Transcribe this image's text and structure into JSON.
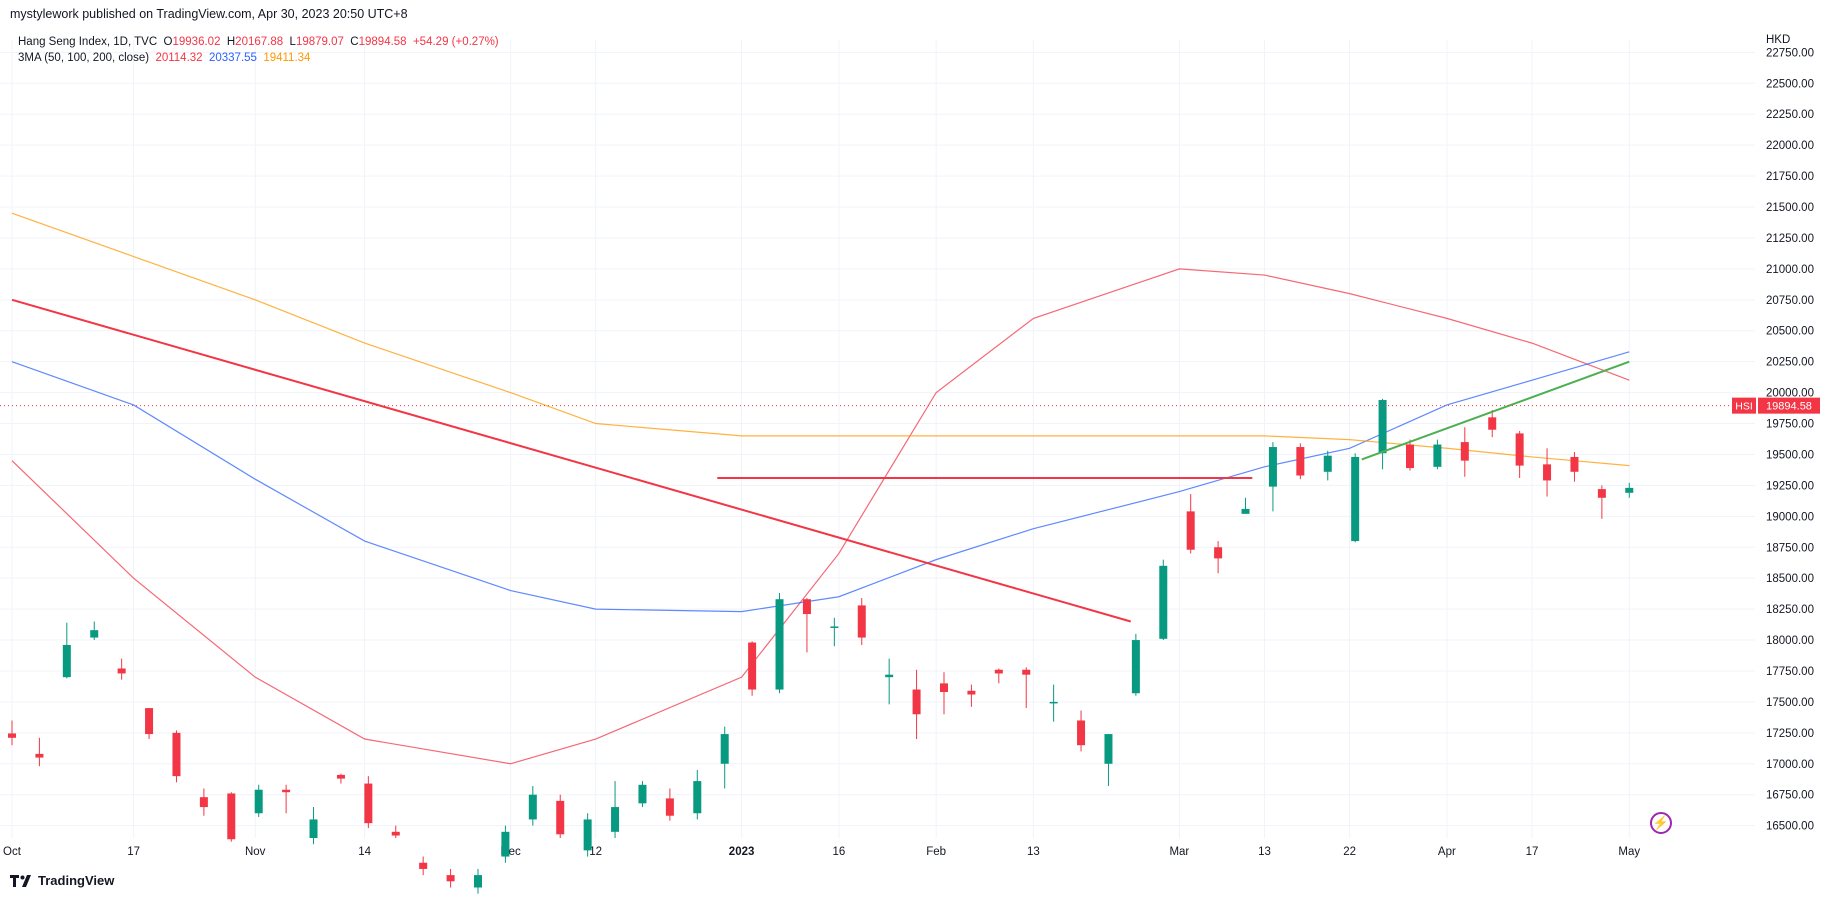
{
  "header": {
    "publisher_line": "mystylework published on TradingView.com, Apr 30, 2023 20:50 UTC+8"
  },
  "legend": {
    "symbol": "Hang Seng Index, 1D, TVC",
    "o_label": "O",
    "o_value": "19936.02",
    "h_label": "H",
    "h_value": "20167.88",
    "l_label": "L",
    "l_value": "19879.07",
    "c_label": "C",
    "c_value": "19894.58",
    "change": "+54.29 (+0.27%)",
    "ma_label": "3MA (50, 100, 200, close)",
    "ma50_value": "20114.32",
    "ma100_value": "20337.55",
    "ma200_value": "19411.34"
  },
  "currency": "HKD",
  "price_tag": {
    "symbol": "HSI",
    "value": "19894.58"
  },
  "footer": {
    "brand": "TradingView"
  },
  "colors": {
    "up": "#089981",
    "down": "#f23645",
    "ma50": "#f23645",
    "ma100": "#2962ff",
    "ma200": "#ff9800",
    "trend_green": "#4caf50",
    "grid": "#f0f3fa"
  },
  "icons": {
    "brand_logo": "tradingview-logo",
    "lightning": "lightning-icon"
  },
  "chart_data": {
    "type": "candlestick",
    "y_axis": {
      "range": [
        16400,
        22850
      ],
      "ticks": [
        16500,
        16750,
        17000,
        17250,
        17500,
        17750,
        18000,
        18250,
        18500,
        18750,
        19000,
        19250,
        19500,
        19750,
        20000,
        20250,
        20500,
        20750,
        21000,
        21250,
        21500,
        21750,
        22000,
        22250,
        22500,
        22750
      ],
      "tick_labels": [
        "16500.00",
        "16750.00",
        "17000.00",
        "17250.00",
        "17500.00",
        "17750.00",
        "18000.00",
        "18250.00",
        "18500.00",
        "18750.00",
        "19000.00",
        "19250.00",
        "19500.00",
        "19750.00",
        "20000.00",
        "20250.00",
        "20500.00",
        "20750.00",
        "21000.00",
        "21250.00",
        "21500.00",
        "21750.00",
        "22000.00",
        "22250.00",
        "22500.00",
        "22750.00"
      ]
    },
    "x_axis": {
      "tick_labels": [
        "Oct",
        "17",
        "Nov",
        "14",
        "Dec",
        "12",
        "2023",
        "16",
        "Feb",
        "13",
        "Mar",
        "13",
        "22",
        "Apr",
        "17",
        "May"
      ],
      "tick_bar_index": [
        0,
        10,
        20,
        29,
        41,
        48,
        60,
        68,
        76,
        84,
        96,
        103,
        110,
        118,
        125,
        133
      ]
    },
    "candles": [
      [
        17245,
        17210,
        17350,
        17150
      ],
      [
        17080,
        17050,
        17210,
        16980
      ],
      [
        17700,
        17960,
        18140,
        17690
      ],
      [
        18020,
        18080,
        18150,
        18000
      ],
      [
        17770,
        17730,
        17850,
        17680
      ],
      [
        17450,
        17240,
        17450,
        17200
      ],
      [
        17250,
        16900,
        17270,
        16850
      ],
      [
        16730,
        16650,
        16800,
        16580
      ],
      [
        16760,
        16390,
        16770,
        16370
      ],
      [
        16600,
        16790,
        16830,
        16570
      ],
      [
        16790,
        16770,
        16830,
        16600
      ],
      [
        16400,
        16550,
        16650,
        16350
      ],
      [
        16910,
        16880,
        16920,
        16840
      ],
      [
        16840,
        16520,
        16900,
        16480
      ],
      [
        16450,
        16420,
        16500,
        16400
      ],
      [
        16200,
        16150,
        16250,
        16100
      ],
      [
        16100,
        16050,
        16150,
        16000
      ],
      [
        16000,
        16100,
        16150,
        15950
      ],
      [
        16250,
        16450,
        16500,
        16200
      ],
      [
        16550,
        16750,
        16820,
        16500
      ],
      [
        16700,
        16430,
        16750,
        16400
      ],
      [
        16300,
        16550,
        16600,
        16250
      ],
      [
        16450,
        16650,
        16860,
        16400
      ],
      [
        16680,
        16830,
        16860,
        16650
      ],
      [
        16720,
        16580,
        16800,
        16540
      ],
      [
        16600,
        16860,
        16950,
        16550
      ],
      [
        17000,
        17240,
        17300,
        16800
      ],
      [
        17980,
        17600,
        17990,
        17550
      ],
      [
        17600,
        18330,
        18380,
        17570
      ],
      [
        18330,
        18210,
        18340,
        17900
      ],
      [
        18100,
        18110,
        18180,
        17950
      ],
      [
        18280,
        18020,
        18340,
        17960
      ],
      [
        17700,
        17720,
        17850,
        17480
      ],
      [
        17600,
        17400,
        17760,
        17200
      ],
      [
        17650,
        17580,
        17740,
        17400
      ],
      [
        17590,
        17560,
        17640,
        17460
      ],
      [
        17760,
        17730,
        17770,
        17650
      ],
      [
        17760,
        17720,
        17780,
        17450
      ],
      [
        17500,
        17500,
        17640,
        17340
      ],
      [
        17350,
        17150,
        17430,
        17100
      ],
      [
        17000,
        17240,
        17240,
        16820
      ],
      [
        17570,
        18000,
        18050,
        17550
      ],
      [
        18010,
        18600,
        18650,
        18000
      ],
      [
        19040,
        18730,
        19180,
        18700
      ],
      [
        18750,
        18660,
        18800,
        18540
      ],
      [
        19020,
        19060,
        19150,
        19040
      ],
      [
        19240,
        19560,
        19600,
        19040
      ],
      [
        19560,
        19330,
        19590,
        19300
      ],
      [
        19360,
        19490,
        19530,
        19290
      ],
      [
        18800,
        19480,
        19510,
        18790
      ],
      [
        19510,
        19940,
        19950,
        19380
      ],
      [
        19580,
        19390,
        19620,
        19370
      ],
      [
        19400,
        19580,
        19620,
        19380
      ],
      [
        19600,
        19450,
        19720,
        19320
      ],
      [
        19800,
        19700,
        19860,
        19640
      ],
      [
        19670,
        19410,
        19690,
        19310
      ],
      [
        19420,
        19290,
        19550,
        19160
      ],
      [
        19480,
        19360,
        19520,
        19280
      ],
      [
        19220,
        19150,
        19250,
        18980
      ],
      [
        19190,
        19230,
        19270,
        19150
      ]
    ],
    "moving_averages": [
      {
        "period": 50,
        "color": "#f23645",
        "points": [
          [
            0,
            19450
          ],
          [
            10,
            18500
          ],
          [
            20,
            17700
          ],
          [
            29,
            17200
          ],
          [
            41,
            17000
          ],
          [
            48,
            17200
          ],
          [
            60,
            17700
          ],
          [
            68,
            18700
          ],
          [
            76,
            20000
          ],
          [
            84,
            20600
          ],
          [
            96,
            21000
          ],
          [
            103,
            20950
          ],
          [
            110,
            20800
          ],
          [
            118,
            20600
          ],
          [
            125,
            20400
          ],
          [
            133,
            20100
          ]
        ]
      },
      {
        "period": 100,
        "color": "#2962ff",
        "points": [
          [
            0,
            20250
          ],
          [
            10,
            19900
          ],
          [
            20,
            19300
          ],
          [
            29,
            18800
          ],
          [
            41,
            18400
          ],
          [
            48,
            18250
          ],
          [
            60,
            18230
          ],
          [
            68,
            18350
          ],
          [
            76,
            18650
          ],
          [
            84,
            18900
          ],
          [
            96,
            19200
          ],
          [
            103,
            19400
          ],
          [
            110,
            19550
          ],
          [
            118,
            19900
          ],
          [
            125,
            20100
          ],
          [
            133,
            20330
          ]
        ]
      },
      {
        "period": 200,
        "color": "#ff9800",
        "points": [
          [
            0,
            21450
          ],
          [
            10,
            21100
          ],
          [
            20,
            20750
          ],
          [
            29,
            20400
          ],
          [
            41,
            20000
          ],
          [
            48,
            19750
          ],
          [
            60,
            19650
          ],
          [
            68,
            19650
          ],
          [
            76,
            19650
          ],
          [
            84,
            19650
          ],
          [
            96,
            19650
          ],
          [
            103,
            19650
          ],
          [
            110,
            19620
          ],
          [
            118,
            19550
          ],
          [
            125,
            19480
          ],
          [
            133,
            19410
          ]
        ]
      }
    ],
    "drawings": [
      {
        "type": "trendline",
        "color": "#f23645",
        "from": [
          0,
          20750
        ],
        "to": [
          92,
          18150
        ]
      },
      {
        "type": "horizontal",
        "color": "#f23645",
        "from": [
          58,
          19310
        ],
        "to": [
          102,
          19310
        ]
      },
      {
        "type": "trendline",
        "color": "#4caf50",
        "from": [
          111,
          19460
        ],
        "to": [
          133,
          20250
        ]
      }
    ],
    "last_price": 19894.58
  }
}
